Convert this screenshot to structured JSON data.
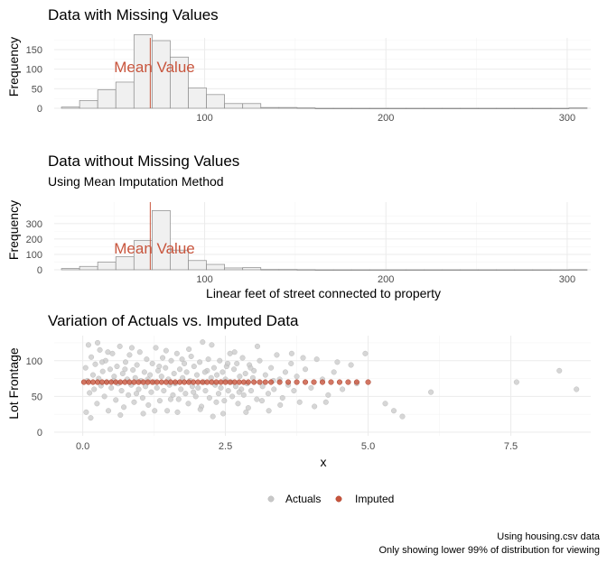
{
  "colors": {
    "mean": "#c8553d",
    "imputed": "#c8553d",
    "actual": "#c8c8c8",
    "bar_fill": "#f0f0f0",
    "bar_stroke": "#8a8a8a",
    "grid_major": "#ebebeb",
    "grid_minor": "#f4f4f4"
  },
  "caption": {
    "line1": "Using housing.csv data",
    "line2": "Only showing lower 99% of distribution for viewing"
  },
  "chart_data": [
    {
      "type": "bar",
      "title": "Data with Missing Values",
      "subtitle": "",
      "xlabel": "",
      "ylabel": "Frequency",
      "xlim": [
        17,
        313
      ],
      "ylim": [
        0,
        180
      ],
      "x_ticks": [
        100,
        200,
        300
      ],
      "x_tick_labels": [
        "100",
        "200",
        "300"
      ],
      "y_ticks": [
        0,
        50,
        100,
        150
      ],
      "y_tick_labels": [
        "0",
        "50",
        "100",
        "150"
      ],
      "bin_width": 10,
      "bin_starts": [
        21,
        31,
        41,
        51,
        61,
        71,
        81,
        91,
        101,
        111,
        121,
        131,
        141,
        151,
        161,
        171,
        181,
        191,
        201,
        211,
        221,
        231,
        241,
        251,
        261,
        271,
        281,
        291,
        301
      ],
      "counts": [
        3,
        20,
        47,
        67,
        188,
        173,
        131,
        52,
        35,
        12,
        12,
        2,
        2,
        1,
        0,
        0,
        0,
        0,
        0,
        0,
        0,
        0,
        0,
        0,
        0,
        0,
        0,
        0,
        1
      ],
      "mean": 70,
      "mean_label": "Mean Value",
      "grid": true
    },
    {
      "type": "bar",
      "title": "Data without Missing Values",
      "subtitle": "Using Mean Imputation Method",
      "xlabel": "Linear feet of street connected to property",
      "ylabel": "Frequency",
      "xlim": [
        17,
        313
      ],
      "ylim": [
        0,
        440
      ],
      "x_ticks": [
        100,
        200,
        300
      ],
      "x_tick_labels": [
        "100",
        "200",
        "300"
      ],
      "y_ticks": [
        0,
        100,
        200,
        300
      ],
      "y_tick_labels": [
        "0",
        "100",
        "200",
        "300"
      ],
      "bin_width": 10,
      "bin_starts": [
        21,
        31,
        41,
        51,
        61,
        71,
        81,
        91,
        101,
        111,
        121,
        131,
        141,
        151,
        161,
        171,
        181,
        191,
        201,
        211,
        221,
        231,
        241,
        251,
        261,
        271,
        281,
        291,
        301
      ],
      "counts": [
        8,
        22,
        50,
        85,
        190,
        385,
        128,
        60,
        35,
        12,
        14,
        2,
        2,
        1,
        0,
        0,
        0,
        0,
        0,
        0,
        0,
        0,
        0,
        0,
        0,
        0,
        0,
        0,
        1
      ],
      "mean": 70,
      "mean_label": "Mean Value",
      "grid": true
    },
    {
      "type": "scatter",
      "title": "Variation of Actuals vs. Imputed Data",
      "xlabel": "x",
      "ylabel": "Lot Frontage",
      "xlim": [
        -0.5,
        8.9
      ],
      "ylim": [
        -5,
        135
      ],
      "x_ticks": [
        0,
        2.5,
        5,
        7.5
      ],
      "x_tick_labels": [
        "0.0",
        "2.5",
        "5.0",
        "7.5"
      ],
      "y_ticks": [
        0,
        50,
        100
      ],
      "y_tick_labels": [
        "0",
        "50",
        "100"
      ],
      "grid": true,
      "legend_position": "bottom",
      "series": [
        {
          "name": "Actuals",
          "points": [
            [
              0.05,
              90
            ],
            [
              0.08,
              72
            ],
            [
              0.1,
              122
            ],
            [
              0.12,
              55
            ],
            [
              0.15,
              105
            ],
            [
              0.18,
              80
            ],
            [
              0.2,
              60
            ],
            [
              0.22,
              95
            ],
            [
              0.25,
              40
            ],
            [
              0.28,
              75
            ],
            [
              0.3,
              115
            ],
            [
              0.32,
              65
            ],
            [
              0.35,
              85
            ],
            [
              0.38,
              50
            ],
            [
              0.4,
              100
            ],
            [
              0.42,
              70
            ],
            [
              0.45,
              30
            ],
            [
              0.48,
              88
            ],
            [
              0.5,
              62
            ],
            [
              0.52,
              110
            ],
            [
              0.55,
              78
            ],
            [
              0.58,
              45
            ],
            [
              0.6,
              92
            ],
            [
              0.62,
              68
            ],
            [
              0.65,
              120
            ],
            [
              0.68,
              58
            ],
            [
              0.7,
              82
            ],
            [
              0.72,
              35
            ],
            [
              0.75,
              98
            ],
            [
              0.78,
              74
            ],
            [
              0.8,
              52
            ],
            [
              0.82,
              108
            ],
            [
              0.85,
              66
            ],
            [
              0.88,
              87
            ],
            [
              0.9,
              42
            ],
            [
              0.92,
              76
            ],
            [
              0.95,
              94
            ],
            [
              0.98,
              60
            ],
            [
              1.0,
              112
            ],
            [
              1.02,
              72
            ],
            [
              1.05,
              48
            ],
            [
              1.08,
              84
            ],
            [
              1.1,
              64
            ],
            [
              1.12,
              102
            ],
            [
              1.15,
              38
            ],
            [
              1.18,
              80
            ],
            [
              1.2,
              56
            ],
            [
              1.22,
              96
            ],
            [
              1.25,
              70
            ],
            [
              1.28,
              118
            ],
            [
              1.3,
              62
            ],
            [
              1.32,
              86
            ],
            [
              1.35,
              44
            ],
            [
              1.38,
              78
            ],
            [
              1.4,
              104
            ],
            [
              1.42,
              58
            ],
            [
              1.45,
              90
            ],
            [
              1.48,
              30
            ],
            [
              1.5,
              74
            ],
            [
              1.52,
              66
            ],
            [
              1.55,
              100
            ],
            [
              1.58,
              52
            ],
            [
              1.6,
              82
            ],
            [
              1.62,
              68
            ],
            [
              1.65,
              110
            ],
            [
              1.68,
              46
            ],
            [
              1.7,
              88
            ],
            [
              1.72,
              60
            ],
            [
              1.75,
              76
            ],
            [
              1.78,
              96
            ],
            [
              1.8,
              54
            ],
            [
              1.82,
              84
            ],
            [
              1.85,
              40
            ],
            [
              1.88,
              72
            ],
            [
              1.9,
              106
            ],
            [
              1.92,
              64
            ],
            [
              1.95,
              92
            ],
            [
              1.98,
              50
            ],
            [
              2.0,
              80
            ],
            [
              2.02,
              62
            ],
            [
              2.05,
              98
            ],
            [
              2.08,
              36
            ],
            [
              2.1,
              126
            ],
            [
              2.12,
              70
            ],
            [
              2.15,
              58
            ],
            [
              2.18,
              86
            ],
            [
              2.2,
              102
            ],
            [
              2.22,
              48
            ],
            [
              2.25,
              76
            ],
            [
              2.28,
              22
            ],
            [
              2.3,
              90
            ],
            [
              2.32,
              66
            ],
            [
              2.35,
              80
            ],
            [
              2.38,
              54
            ],
            [
              2.4,
              100
            ],
            [
              2.42,
              62
            ],
            [
              2.45,
              84
            ],
            [
              2.48,
              44
            ],
            [
              2.5,
              74
            ],
            [
              2.52,
              92
            ],
            [
              2.55,
              58
            ],
            [
              2.58,
              110
            ],
            [
              2.6,
              70
            ],
            [
              2.62,
              50
            ],
            [
              2.65,
              88
            ],
            [
              2.68,
              64
            ],
            [
              2.7,
              96
            ],
            [
              2.72,
              40
            ],
            [
              2.75,
              78
            ],
            [
              2.78,
              60
            ],
            [
              2.8,
              104
            ],
            [
              2.82,
              52
            ],
            [
              2.85,
              82
            ],
            [
              2.88,
              68
            ],
            [
              2.9,
              34
            ],
            [
              2.92,
              94
            ],
            [
              2.95,
              58
            ],
            [
              2.98,
              76
            ],
            [
              3.0,
              86
            ],
            [
              3.05,
              46
            ],
            [
              3.1,
              100
            ],
            [
              3.15,
              64
            ],
            [
              3.2,
              80
            ],
            [
              3.25,
              54
            ],
            [
              3.3,
              90
            ],
            [
              3.35,
              60
            ],
            [
              3.4,
              108
            ],
            [
              3.45,
              74
            ],
            [
              3.5,
              48
            ],
            [
              3.55,
              84
            ],
            [
              3.6,
              66
            ],
            [
              3.65,
              96
            ],
            [
              3.7,
              58
            ],
            [
              3.75,
              78
            ],
            [
              3.8,
              42
            ],
            [
              3.9,
              88
            ],
            [
              4.0,
              62
            ],
            [
              4.1,
              102
            ],
            [
              4.2,
              74
            ],
            [
              4.3,
              52
            ],
            [
              4.4,
              84
            ],
            [
              4.55,
              60
            ],
            [
              4.7,
              94
            ],
            [
              4.8,
              68
            ],
            [
              4.95,
              110
            ],
            [
              5.3,
              40
            ],
            [
              5.45,
              30
            ],
            [
              5.6,
              22
            ],
            [
              6.1,
              56
            ],
            [
              7.6,
              70
            ],
            [
              8.35,
              86
            ],
            [
              8.65,
              60
            ],
            [
              0.06,
              28
            ],
            [
              0.14,
              20
            ],
            [
              0.26,
              125
            ],
            [
              0.44,
              112
            ],
            [
              0.66,
              24
            ],
            [
              0.86,
              118
            ],
            [
              1.06,
              26
            ],
            [
              1.26,
              30
            ],
            [
              1.46,
              114
            ],
            [
              1.66,
              28
            ],
            [
              1.86,
              116
            ],
            [
              2.06,
              32
            ],
            [
              2.26,
              122
            ],
            [
              2.46,
              26
            ],
            [
              2.66,
              112
            ],
            [
              2.86,
              28
            ],
            [
              3.06,
              120
            ],
            [
              3.26,
              30
            ],
            [
              3.46,
              38
            ],
            [
              3.66,
              110
            ],
            [
              3.86,
              104
            ],
            [
              4.06,
              36
            ],
            [
              4.26,
              42
            ],
            [
              4.46,
              98
            ],
            [
              0.34,
              98
            ],
            [
              0.54,
              72
            ],
            [
              0.74,
              88
            ],
            [
              0.94,
              54
            ],
            [
              1.14,
              74
            ],
            [
              1.34,
              92
            ],
            [
              1.54,
              46
            ],
            [
              1.74,
              102
            ],
            [
              1.94,
              56
            ],
            [
              2.14,
              84
            ],
            [
              2.34,
              42
            ],
            [
              2.54,
              96
            ],
            [
              2.74,
              56
            ],
            [
              2.94,
              90
            ],
            [
              3.14,
              44
            ],
            [
              3.34,
              72
            ]
          ]
        },
        {
          "name": "Imputed",
          "x_values": [
            0.02,
            0.1,
            0.18,
            0.26,
            0.34,
            0.42,
            0.5,
            0.58,
            0.66,
            0.74,
            0.82,
            0.9,
            0.98,
            1.06,
            1.14,
            1.22,
            1.3,
            1.38,
            1.46,
            1.54,
            1.62,
            1.7,
            1.78,
            1.86,
            1.94,
            2.02,
            2.1,
            2.18,
            2.26,
            2.34,
            2.42,
            2.5,
            2.58,
            2.66,
            2.74,
            2.82,
            2.9,
            3.0,
            3.1,
            3.2,
            3.3,
            3.45,
            3.6,
            3.75,
            3.9,
            4.05,
            4.2,
            4.35,
            4.5,
            4.65,
            4.8,
            5.0
          ],
          "y": 70
        }
      ]
    }
  ]
}
